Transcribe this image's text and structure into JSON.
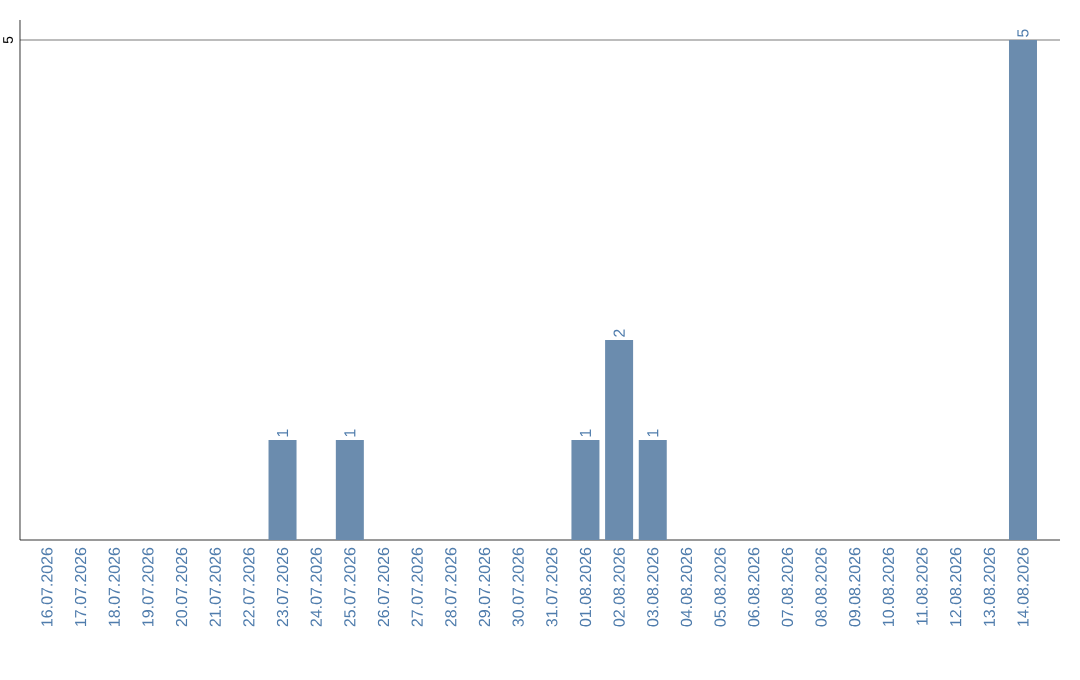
{
  "chart_data": {
    "type": "bar",
    "categories": [
      "16.07.2026",
      "17.07.2026",
      "18.07.2026",
      "19.07.2026",
      "20.07.2026",
      "21.07.2026",
      "22.07.2026",
      "23.07.2026",
      "24.07.2026",
      "25.07.2026",
      "26.07.2026",
      "27.07.2026",
      "28.07.2026",
      "29.07.2026",
      "30.07.2026",
      "31.07.2026",
      "01.08.2026",
      "02.08.2026",
      "03.08.2026",
      "04.08.2026",
      "05.08.2026",
      "06.08.2026",
      "07.08.2026",
      "08.08.2026",
      "09.08.2026",
      "10.08.2026",
      "11.08.2026",
      "12.08.2026",
      "13.08.2026",
      "14.08.2026"
    ],
    "values": [
      0,
      0,
      0,
      0,
      0,
      0,
      0,
      1,
      0,
      1,
      0,
      0,
      0,
      0,
      0,
      0,
      1,
      2,
      1,
      0,
      0,
      0,
      0,
      0,
      0,
      0,
      0,
      0,
      0,
      5
    ],
    "value_labels": [
      null,
      null,
      null,
      null,
      null,
      null,
      null,
      "1",
      null,
      "1",
      null,
      null,
      null,
      null,
      null,
      null,
      "1",
      "2",
      "1",
      null,
      null,
      null,
      null,
      null,
      null,
      null,
      null,
      null,
      null,
      "5"
    ],
    "color": "#6b8cae",
    "ylim": [
      0,
      5.2
    ],
    "yticks": [
      5
    ],
    "grid": "y"
  }
}
